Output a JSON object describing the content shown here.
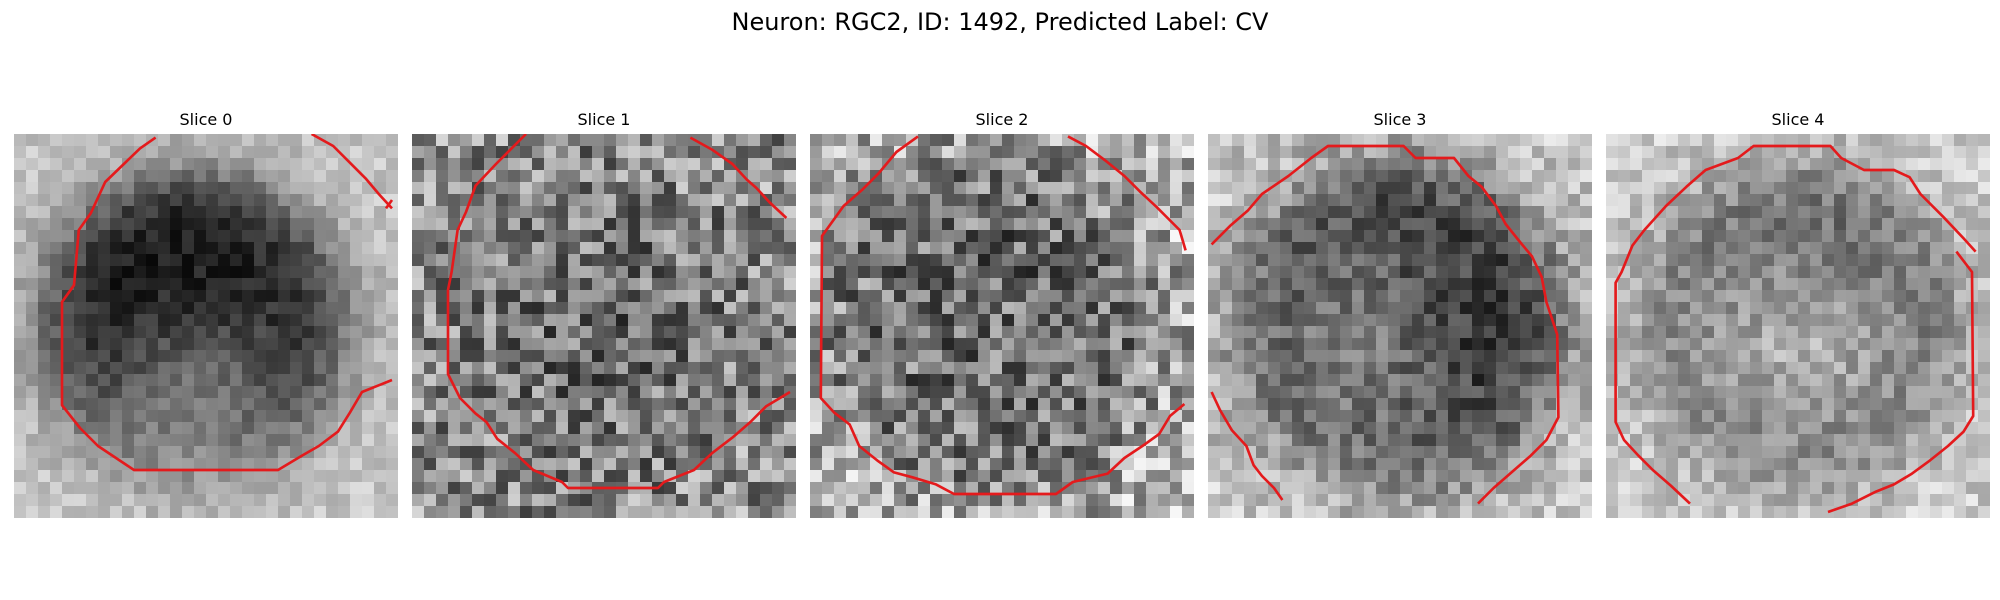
{
  "figure": {
    "title": "Neuron: RGC2, ID: 1492, Predicted Label: CV"
  },
  "panels": [
    {
      "title": "Slice 0"
    },
    {
      "title": "Slice 1"
    },
    {
      "title": "Slice 2"
    },
    {
      "title": "Slice 3"
    },
    {
      "title": "Slice 4"
    }
  ],
  "colors": {
    "contour": "#e41a1c"
  }
}
